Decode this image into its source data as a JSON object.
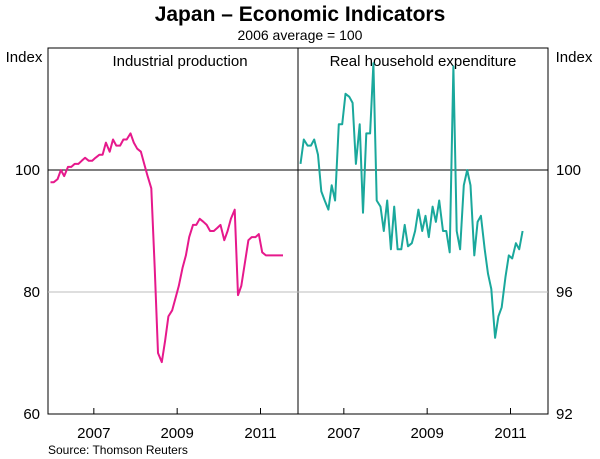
{
  "title": "Japan – Economic Indicators",
  "subtitle": "2006 average = 100",
  "source": "Source: Thomson Reuters",
  "chart_data": [
    {
      "type": "line",
      "panel": "left",
      "title": "Industrial production",
      "ylabel": "Index",
      "ylim": [
        60,
        120
      ],
      "yticks": [
        60,
        80,
        100
      ],
      "xlim": [
        2005.9,
        2011.9
      ],
      "xticks": [
        2007,
        2009,
        2011
      ],
      "x_tick_labels": [
        "2007",
        "2009",
        "2011"
      ],
      "reference_line": 100,
      "series": [
        {
          "name": "Industrial production",
          "color": "#e6198c",
          "x": [
            2005.96,
            2006.04,
            2006.13,
            2006.21,
            2006.29,
            2006.38,
            2006.46,
            2006.54,
            2006.63,
            2006.71,
            2006.79,
            2006.88,
            2006.96,
            2007.04,
            2007.13,
            2007.21,
            2007.29,
            2007.38,
            2007.46,
            2007.54,
            2007.63,
            2007.71,
            2007.79,
            2007.88,
            2007.96,
            2008.04,
            2008.13,
            2008.21,
            2008.29,
            2008.38,
            2008.46,
            2008.54,
            2008.63,
            2008.71,
            2008.79,
            2008.88,
            2008.96,
            2009.04,
            2009.13,
            2009.21,
            2009.29,
            2009.38,
            2009.46,
            2009.54,
            2009.63,
            2009.71,
            2009.79,
            2009.88,
            2009.96,
            2010.04,
            2010.13,
            2010.21,
            2010.29,
            2010.38,
            2010.46,
            2010.54,
            2010.63,
            2010.71,
            2010.79,
            2010.88,
            2010.96,
            2011.04,
            2011.13,
            2011.21,
            2011.29,
            2011.38,
            2011.46,
            2011.54
          ],
          "values": [
            98,
            98,
            98.5,
            100,
            99,
            100.5,
            100.5,
            101,
            101,
            101.5,
            102,
            101.5,
            101.5,
            102,
            102.5,
            102.5,
            104.5,
            103,
            105,
            104,
            104,
            105,
            105,
            106,
            104.5,
            103.5,
            103,
            101,
            99,
            97,
            84,
            70,
            68.5,
            72,
            76,
            77,
            79,
            81,
            84,
            86,
            89,
            91,
            91,
            92,
            91.5,
            91,
            90,
            90,
            90.5,
            91,
            88.5,
            90,
            92,
            93.5,
            79.5,
            81,
            85,
            88.5,
            89,
            89,
            89.5,
            86.5,
            86,
            86,
            86,
            86,
            86,
            86
          ]
        }
      ]
    },
    {
      "type": "line",
      "panel": "right",
      "title": "Real household expenditure",
      "ylabel": "Index",
      "ylim": [
        92,
        104
      ],
      "yticks": [
        92,
        96,
        100
      ],
      "xlim": [
        2005.9,
        2011.9
      ],
      "xticks": [
        2007,
        2009,
        2011
      ],
      "x_tick_labels": [
        "2007",
        "2009",
        "2011"
      ],
      "reference_line": 100,
      "series": [
        {
          "name": "Real household expenditure",
          "color": "#1aa89c",
          "x": [
            2005.96,
            2006.04,
            2006.13,
            2006.21,
            2006.29,
            2006.38,
            2006.46,
            2006.54,
            2006.63,
            2006.71,
            2006.79,
            2006.88,
            2006.96,
            2007.04,
            2007.13,
            2007.21,
            2007.29,
            2007.38,
            2007.46,
            2007.54,
            2007.63,
            2007.71,
            2007.79,
            2007.88,
            2007.96,
            2008.04,
            2008.13,
            2008.21,
            2008.29,
            2008.38,
            2008.46,
            2008.54,
            2008.63,
            2008.71,
            2008.79,
            2008.88,
            2008.96,
            2009.04,
            2009.13,
            2009.21,
            2009.29,
            2009.38,
            2009.46,
            2009.54,
            2009.63,
            2009.71,
            2009.79,
            2009.88,
            2009.96,
            2010.04,
            2010.13,
            2010.21,
            2010.29,
            2010.38,
            2010.46,
            2010.54,
            2010.63,
            2010.71,
            2010.79,
            2010.88,
            2010.96,
            2011.04,
            2011.13,
            2011.21,
            2011.29
          ],
          "values": [
            100.2,
            101,
            100.8,
            100.8,
            101,
            100.5,
            99.3,
            99,
            98.7,
            99.5,
            99,
            101.5,
            101.5,
            102.5,
            102.4,
            102.2,
            100.2,
            101.5,
            98.6,
            101.2,
            101.2,
            103.5,
            99,
            98.8,
            98,
            99,
            97.4,
            98.8,
            97.4,
            97.4,
            98.2,
            97.5,
            97.6,
            98,
            98.7,
            98,
            98.5,
            97.8,
            98.8,
            98.3,
            99,
            98,
            98,
            97.3,
            103.4,
            98,
            97.4,
            99.5,
            100,
            99.5,
            97.2,
            98.3,
            98.5,
            97.4,
            96.6,
            96.1,
            94.5,
            95.2,
            95.5,
            96.5,
            97.2,
            97.1,
            97.6,
            97.4,
            98
          ]
        }
      ]
    }
  ]
}
